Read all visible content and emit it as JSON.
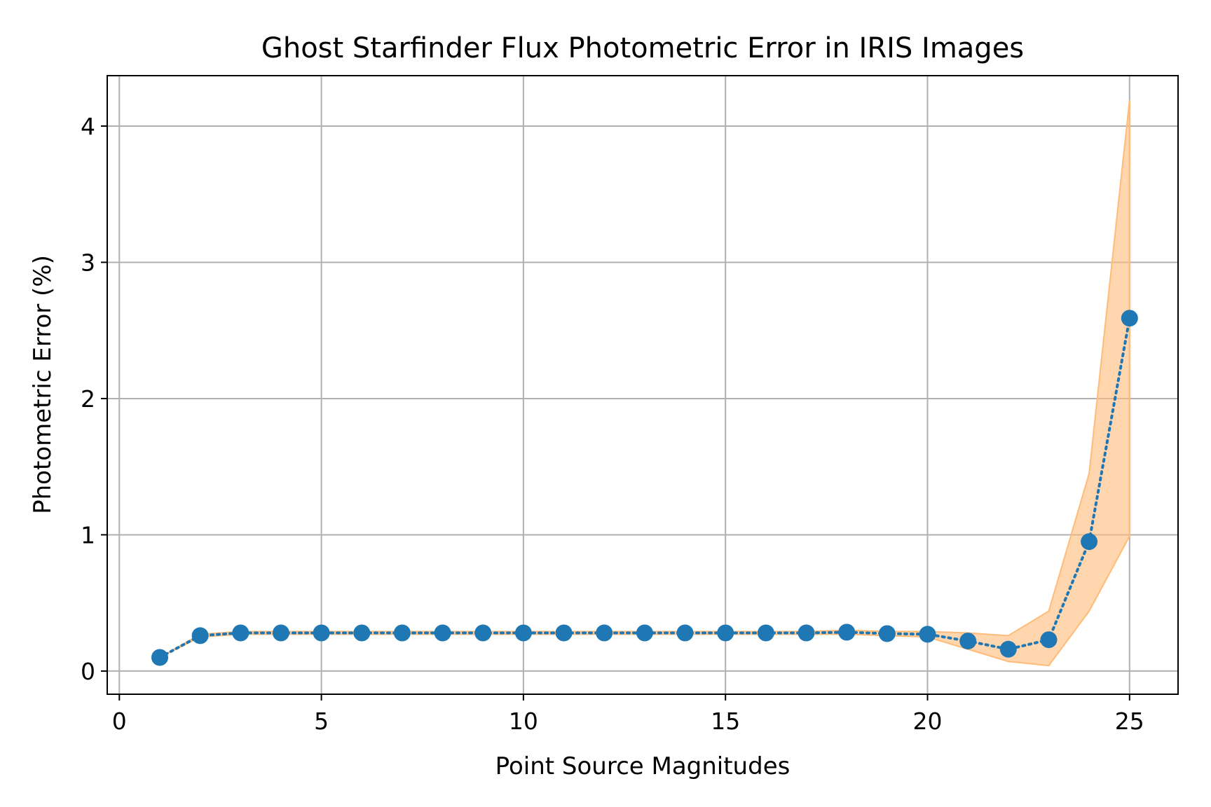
{
  "chart_data": {
    "type": "line",
    "title": "Ghost Starfinder Flux Photometric Error in IRIS Images",
    "xlabel": "Point Source Magnitudes",
    "ylabel": "Photometric Error (%)",
    "xlim": [
      -0.3,
      26.2
    ],
    "ylim": [
      -0.17,
      4.37
    ],
    "xticks": [
      0,
      5,
      10,
      15,
      20,
      25
    ],
    "yticks": [
      0,
      1,
      2,
      3,
      4
    ],
    "grid": true,
    "series": [
      {
        "x": [
          1,
          2,
          3,
          4,
          5,
          6,
          7,
          8,
          9,
          10,
          11,
          12,
          13,
          14,
          15,
          16,
          17,
          18,
          19,
          20,
          21,
          22,
          23,
          24,
          25
        ],
        "values": [
          0.1,
          0.26,
          0.28,
          0.28,
          0.28,
          0.28,
          0.28,
          0.28,
          0.28,
          0.28,
          0.28,
          0.28,
          0.28,
          0.28,
          0.28,
          0.28,
          0.28,
          0.285,
          0.275,
          0.27,
          0.22,
          0.16,
          0.23,
          0.95,
          2.59
        ],
        "color": "#1f77b4",
        "style": "dotted-with-markers"
      }
    ],
    "band": {
      "x": [
        1,
        2,
        3,
        4,
        5,
        6,
        7,
        8,
        9,
        10,
        11,
        12,
        13,
        14,
        15,
        16,
        17,
        18,
        19,
        20,
        21,
        22,
        23,
        24,
        25
      ],
      "lower": [
        0.1,
        0.25,
        0.27,
        0.27,
        0.27,
        0.27,
        0.27,
        0.27,
        0.27,
        0.27,
        0.27,
        0.27,
        0.27,
        0.27,
        0.27,
        0.27,
        0.27,
        0.27,
        0.26,
        0.25,
        0.16,
        0.07,
        0.04,
        0.44,
        0.99
      ],
      "upper": [
        0.1,
        0.27,
        0.29,
        0.29,
        0.29,
        0.29,
        0.29,
        0.29,
        0.29,
        0.29,
        0.29,
        0.29,
        0.29,
        0.29,
        0.29,
        0.29,
        0.29,
        0.3,
        0.29,
        0.29,
        0.28,
        0.26,
        0.44,
        1.45,
        4.19
      ],
      "color": "#ffbb78"
    }
  }
}
